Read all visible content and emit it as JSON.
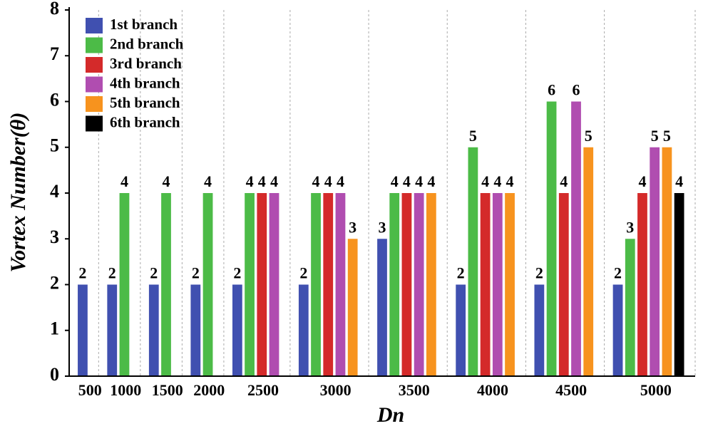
{
  "chart_data": {
    "type": "bar",
    "x_label": "Dn",
    "y_label": "Vortex Number(θ)",
    "categories": [
      "500",
      "1000",
      "1500",
      "2000",
      "2500",
      "3000",
      "3500",
      "4000",
      "4500",
      "5000"
    ],
    "series": [
      {
        "name": "1st branch",
        "color": "#4050b0",
        "values": [
          2,
          2,
          2,
          2,
          2,
          2,
          3,
          2,
          2,
          2
        ]
      },
      {
        "name": "2nd branch",
        "color": "#4cbb47",
        "values": [
          null,
          4,
          4,
          4,
          4,
          4,
          4,
          5,
          6,
          3
        ]
      },
      {
        "name": "3rd branch",
        "color": "#d42a2a",
        "values": [
          null,
          null,
          null,
          null,
          4,
          4,
          4,
          4,
          4,
          4
        ]
      },
      {
        "name": "4th branch",
        "color": "#b04db0",
        "values": [
          null,
          null,
          null,
          null,
          4,
          4,
          4,
          4,
          6,
          5
        ]
      },
      {
        "name": "5th branch",
        "color": "#f7931e",
        "values": [
          null,
          null,
          null,
          null,
          null,
          3,
          4,
          4,
          5,
          5
        ]
      },
      {
        "name": "6th branch",
        "color": "#000000",
        "values": [
          null,
          null,
          null,
          null,
          null,
          null,
          null,
          null,
          null,
          4
        ]
      }
    ],
    "ylim": [
      0,
      8
    ],
    "yticks": [
      0,
      1,
      2,
      3,
      4,
      5,
      6,
      7,
      8
    ],
    "legend": "upper left"
  }
}
